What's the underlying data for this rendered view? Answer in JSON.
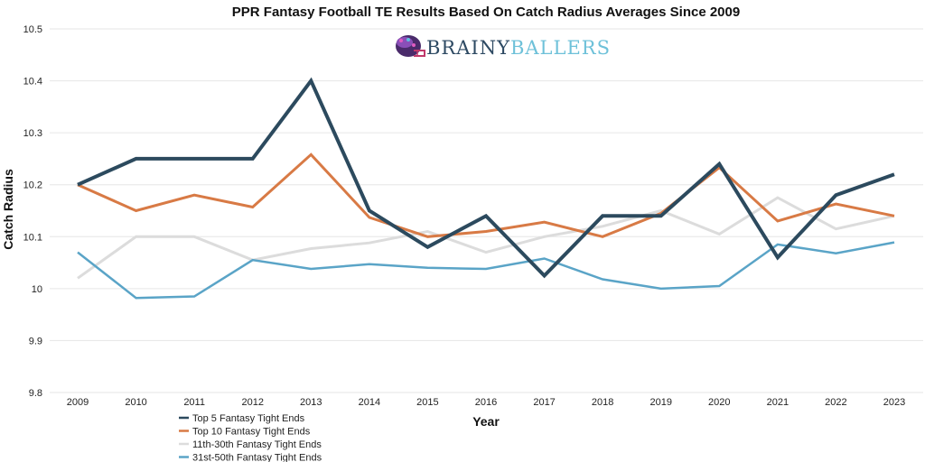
{
  "logo": {
    "brand_part1": "BRAINY",
    "brand_part2": "BALLERS",
    "icon": "football-helmet-brain-icon"
  },
  "chart_data": {
    "type": "line",
    "title": "PPR Fantasy Football TE Results Based On Catch Radius Averages Since 2009",
    "xlabel": "Year",
    "ylabel": "Catch Radius",
    "ylim": [
      9.8,
      10.5
    ],
    "yticks": [
      9.8,
      9.9,
      10,
      10.1,
      10.2,
      10.3,
      10.4,
      10.5
    ],
    "ytick_labels": [
      "9.8",
      "9.9",
      "10",
      "10.1",
      "10.2",
      "10.3",
      "10.4",
      "10.5"
    ],
    "grid": true,
    "legend_position": "bottom",
    "x": [
      "2009",
      "2010",
      "2011",
      "2012",
      "2013",
      "2014",
      "2015",
      "2016",
      "2017",
      "2018",
      "2019",
      "2020",
      "2021",
      "2022",
      "2023"
    ],
    "series": [
      {
        "name": "Top 5 Fantasy Tight Ends",
        "color": "#2c4a5e",
        "values": [
          10.2,
          10.25,
          10.25,
          10.25,
          10.4,
          10.15,
          10.08,
          10.14,
          10.025,
          10.14,
          10.14,
          10.24,
          10.06,
          10.18,
          10.22
        ]
      },
      {
        "name": "Top 10 Fantasy Tight Ends",
        "color": "#d87a45",
        "values": [
          10.2,
          10.15,
          10.18,
          10.157,
          10.258,
          10.137,
          10.1,
          10.11,
          10.128,
          10.1,
          10.145,
          10.233,
          10.13,
          10.163,
          10.14
        ]
      },
      {
        "name": "11th-30th Fantasy Tight Ends",
        "color": "#dcdcdc",
        "values": [
          10.02,
          10.1,
          10.1,
          10.055,
          10.077,
          10.088,
          10.11,
          10.07,
          10.1,
          10.12,
          10.15,
          10.105,
          10.175,
          10.115,
          10.14
        ]
      },
      {
        "name": "31st-50th Fantasy Tight Ends",
        "color": "#5aa4c7",
        "values": [
          10.07,
          9.982,
          9.985,
          10.055,
          10.038,
          10.047,
          10.04,
          10.038,
          10.058,
          10.018,
          10.0,
          10.005,
          10.085,
          10.068,
          10.089
        ]
      }
    ]
  }
}
